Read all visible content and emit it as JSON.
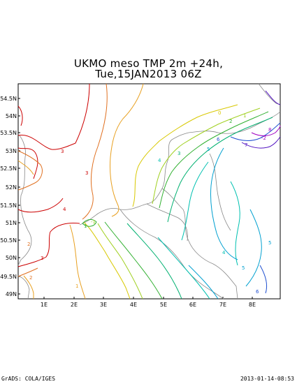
{
  "header": {
    "title_line1": "UKMO meso TMP 2m +24h,",
    "title_line2": "Tue,15JAN2013 06Z"
  },
  "footer": {
    "left": "GrADS: COLA/IGES",
    "right": "2013-01-14-08:53"
  },
  "axes": {
    "lat_labels": [
      "54.5N",
      "54N",
      "53.5N",
      "53N",
      "52.5N",
      "52N",
      "51.5N",
      "51N",
      "50.5N",
      "50N",
      "49.5N",
      "49N"
    ],
    "lon_labels": [
      "1E",
      "2E",
      "3E",
      "4E",
      "5E",
      "6E",
      "7E",
      "8E"
    ]
  },
  "contour_labels": [
    "3",
    "2",
    "1",
    "0",
    "1",
    "2",
    "3",
    "4",
    "5",
    "6",
    "7",
    "8",
    "-2",
    "-1",
    "3",
    "4",
    "5",
    "6",
    "5",
    "4",
    "3",
    "2",
    "1"
  ],
  "colors": {
    "c3": "#cc0000",
    "c2": "#e07020",
    "c1": "#e8a020",
    "c0": "#d8c800",
    "m1": "#a0d020",
    "m2": "#30b030",
    "m3": "#00b070",
    "m4": "#00c0b0",
    "m5": "#00a0d0",
    "m6": "#2050d0",
    "m7": "#5010c0",
    "m8": "#a000c0",
    "coast": "#888888"
  }
}
